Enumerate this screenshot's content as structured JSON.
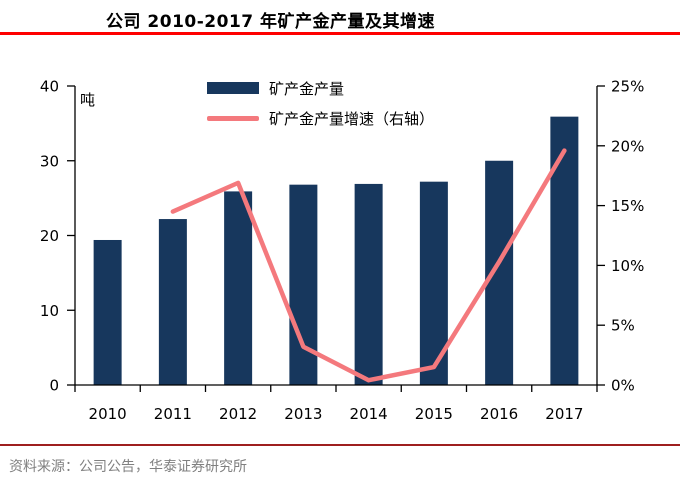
{
  "title": "公司 2010-2017 年矿产金产量及其增速",
  "source_note": "资料来源：公司公告，华泰证券研究所",
  "legend": {
    "bar_label": "矿产金产量",
    "line_label": "矿产金产量增速（右轴）"
  },
  "colors": {
    "bar": "#17375D",
    "line": "#F4797D",
    "title_rule": "#FE0000",
    "footer_rule": "#9E1F1F",
    "source_text": "#808080",
    "axis": "#000000"
  },
  "chart_data": {
    "type": "bar",
    "subtype": "bar+line dual axis",
    "title": "公司 2010-2017 年矿产金产量及其增速",
    "categories": [
      "2010",
      "2011",
      "2012",
      "2013",
      "2014",
      "2015",
      "2016",
      "2017"
    ],
    "series": [
      {
        "name": "矿产金产量",
        "type": "bar",
        "axis": "left",
        "unit": "吨",
        "values": [
          19.4,
          22.2,
          25.9,
          26.8,
          26.9,
          27.2,
          30.0,
          35.9
        ]
      },
      {
        "name": "矿产金产量增速（右轴）",
        "type": "line",
        "axis": "right",
        "unit": "%",
        "values": [
          null,
          14.5,
          16.9,
          3.2,
          0.4,
          1.5,
          10.3,
          19.6
        ]
      }
    ],
    "left_axis": {
      "label": "吨",
      "min": 0,
      "max": 40,
      "tick_step": 10,
      "tick_labels": [
        "0",
        "10",
        "20",
        "30",
        "40"
      ]
    },
    "right_axis": {
      "min": 0,
      "max": 25,
      "tick_step": 5,
      "tick_labels": [
        "0%",
        "5%",
        "10%",
        "15%",
        "20%",
        "25%"
      ]
    },
    "grid": false,
    "legend_position": "top-center"
  }
}
